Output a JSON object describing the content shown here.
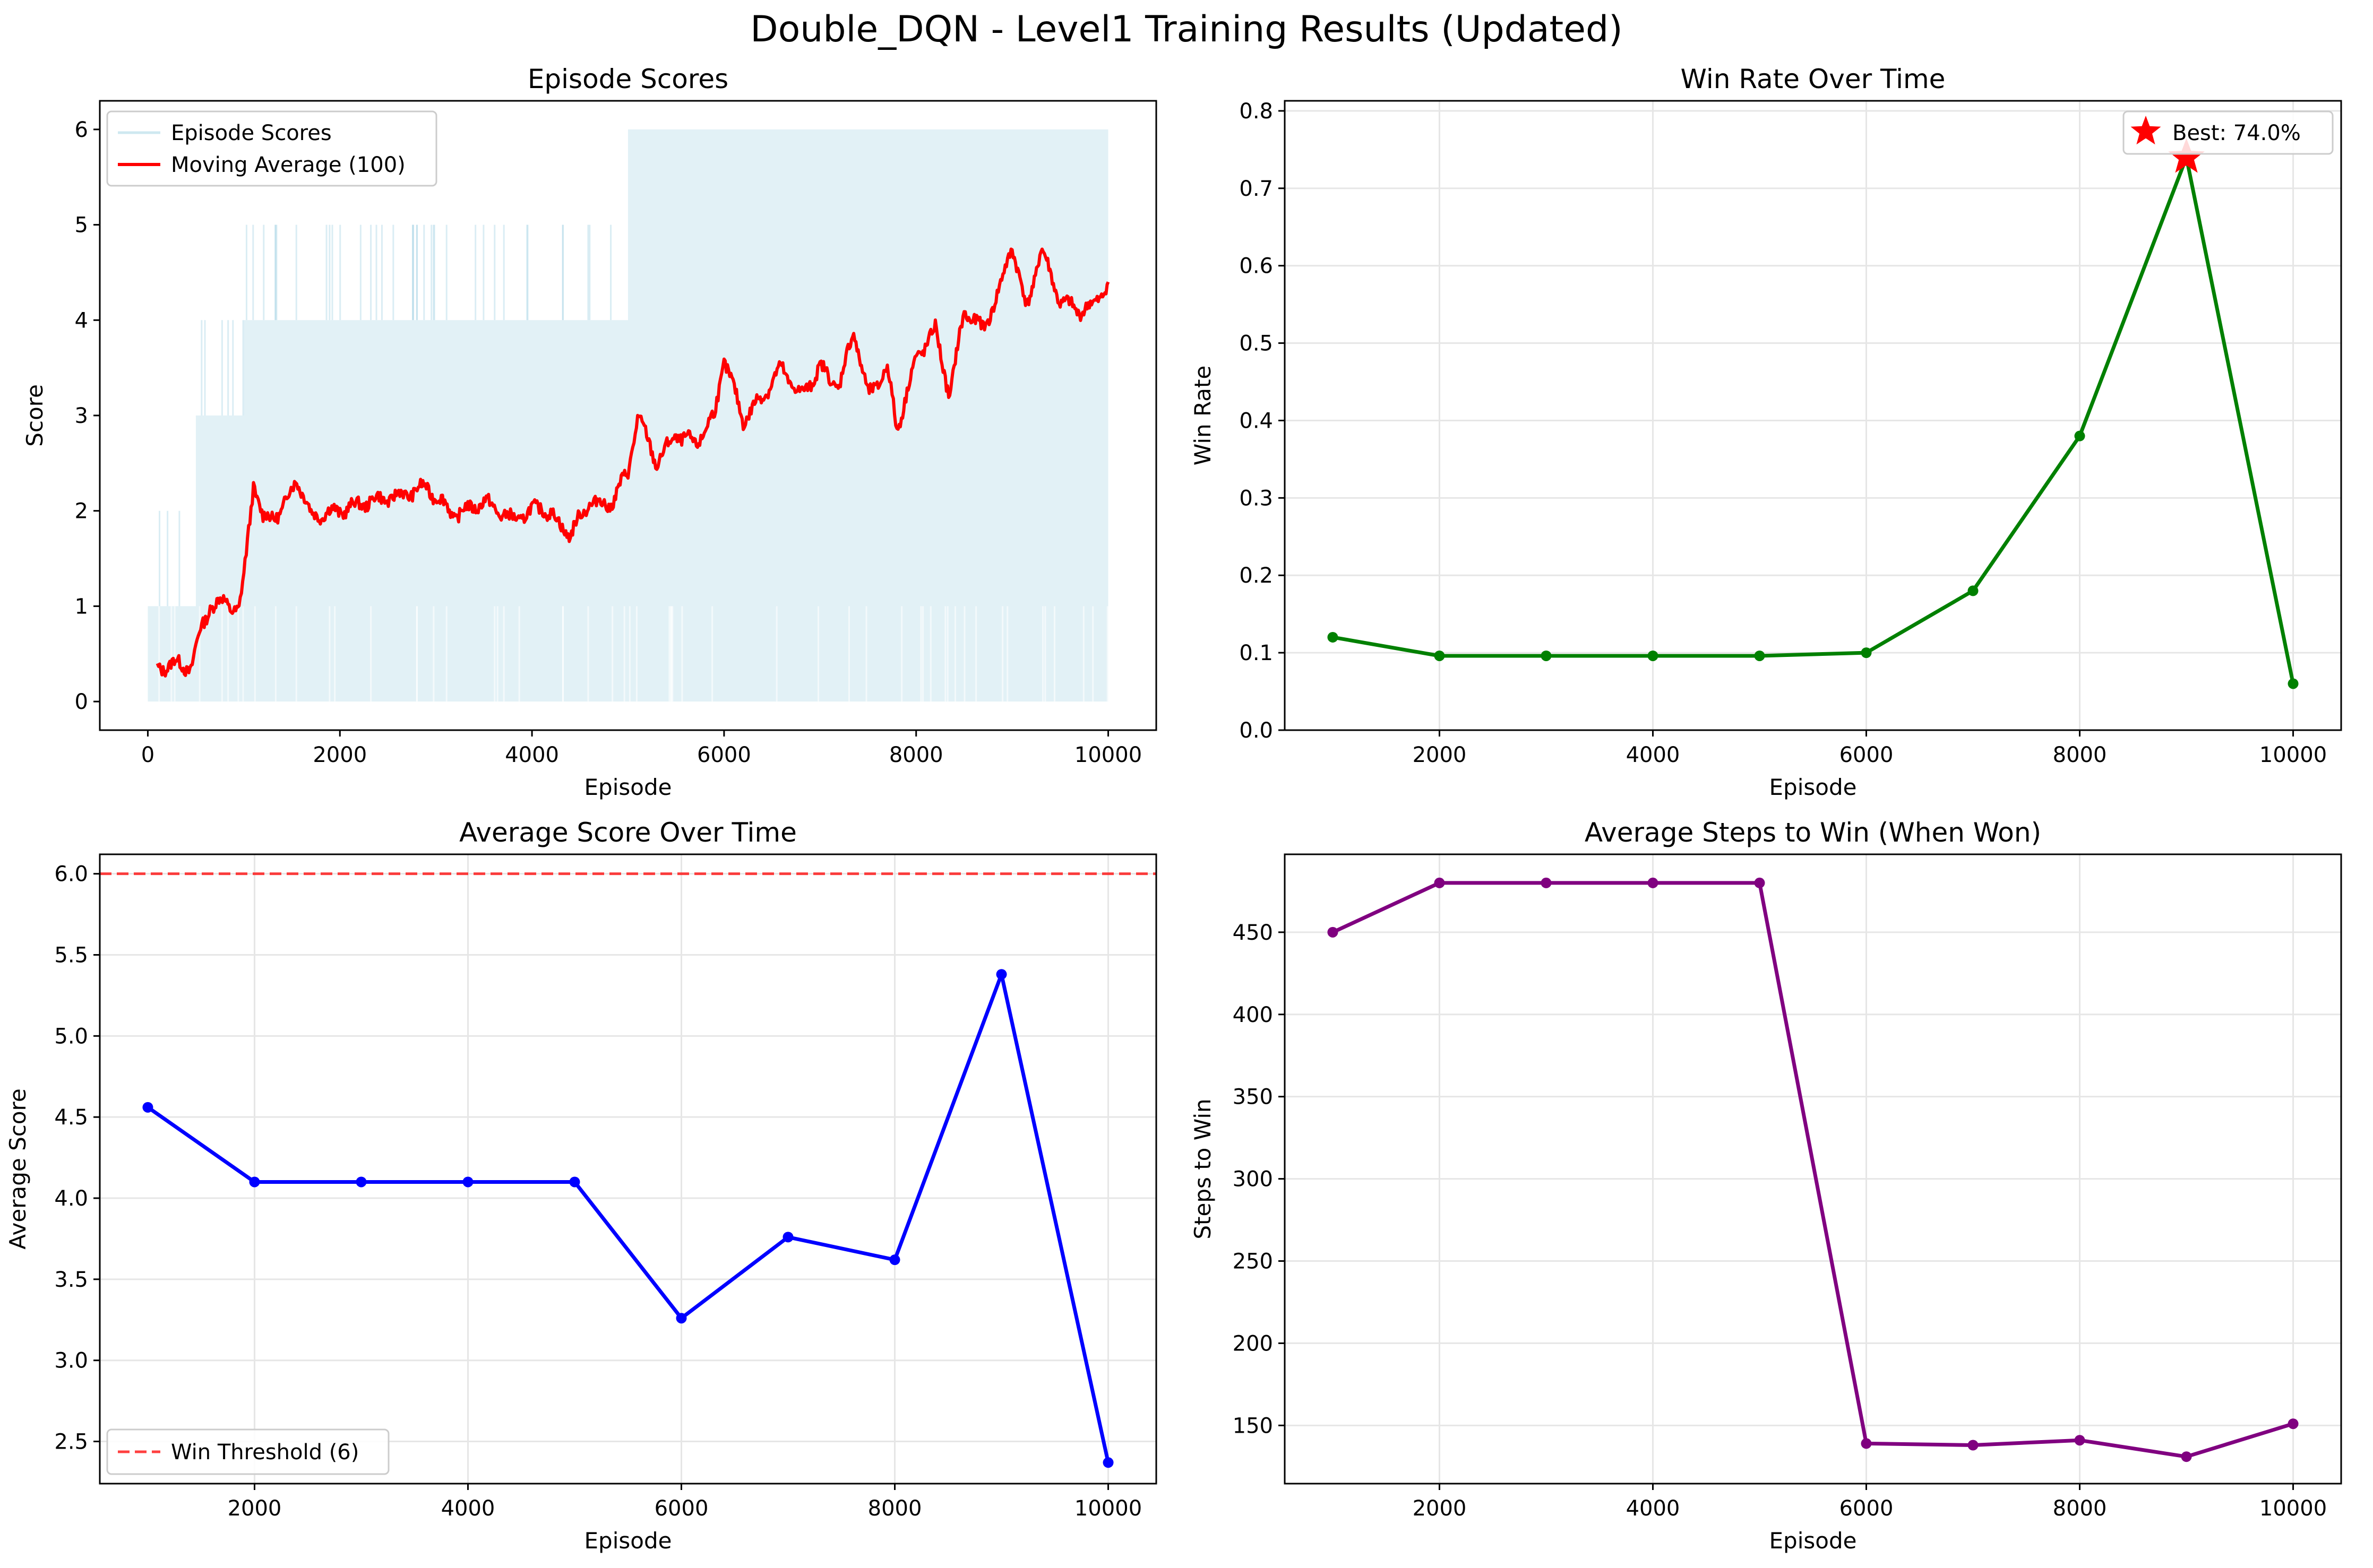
{
  "figure": {
    "title": "Double_DQN - Level1 Training Results (Updated)"
  },
  "chart_data": [
    {
      "id": "episode-scores",
      "type": "line",
      "title": "Episode Scores",
      "xlabel": "Episode",
      "ylabel": "Score",
      "xlim": [
        -500,
        10500
      ],
      "ylim": [
        -0.3,
        6.3
      ],
      "xticks": [
        0,
        2000,
        4000,
        6000,
        8000,
        10000
      ],
      "yticks": [
        0,
        1,
        2,
        3,
        4,
        5,
        6
      ],
      "grid": false,
      "legend": "top-left",
      "series": [
        {
          "name": "Episode Scores",
          "kind": "band",
          "color": "#add8e6",
          "segments": [
            {
              "x": [
                0,
                500
              ],
              "low": 0,
              "high": 1,
              "spikes_to": 2
            },
            {
              "x": [
                500,
                1000
              ],
              "low": 0,
              "high": 3,
              "spikes_to": 4
            },
            {
              "x": [
                1000,
                5000
              ],
              "low": 0,
              "high": 4,
              "spikes_to": 5
            },
            {
              "x": [
                5000,
                10000
              ],
              "low": 0,
              "high": 6,
              "spikes_to": 6
            }
          ]
        },
        {
          "name": "Moving Average (100)",
          "kind": "line",
          "color": "#ff0000",
          "x": [
            100,
            300,
            450,
            550,
            650,
            800,
            950,
            1000,
            1100,
            1200,
            1400,
            1550,
            1700,
            2000,
            2300,
            2600,
            2900,
            3200,
            3500,
            3800,
            4100,
            4400,
            4600,
            4800,
            5000,
            5100,
            5300,
            5500,
            5700,
            5900,
            6000,
            6200,
            6400,
            6600,
            6800,
            7000,
            7200,
            7350,
            7500,
            7700,
            7800,
            8000,
            8200,
            8350,
            8500,
            8700,
            8880,
            9000,
            9150,
            9300,
            9500,
            9700,
            9850,
            10000
          ],
          "y": [
            0.35,
            0.4,
            0.35,
            0.75,
            1.0,
            1.05,
            0.95,
            1.3,
            2.3,
            1.9,
            2.0,
            2.35,
            1.95,
            2.0,
            2.1,
            2.15,
            2.25,
            1.95,
            2.1,
            1.9,
            2.05,
            1.75,
            2.1,
            2.05,
            2.4,
            3.0,
            2.5,
            2.8,
            2.7,
            3.0,
            3.6,
            2.95,
            3.2,
            3.5,
            3.2,
            3.5,
            3.3,
            3.9,
            3.2,
            3.5,
            2.85,
            3.6,
            3.9,
            3.2,
            4.1,
            3.9,
            4.35,
            4.8,
            4.1,
            4.75,
            4.2,
            4.1,
            4.15,
            4.4
          ]
        }
      ]
    },
    {
      "id": "win-rate",
      "type": "line",
      "title": "Win Rate Over Time",
      "xlabel": "Episode",
      "ylabel": "Win Rate",
      "xlim": [
        550,
        10450
      ],
      "ylim": [
        0.0,
        0.813
      ],
      "xticks": [
        2000,
        4000,
        6000,
        8000,
        10000
      ],
      "yticks": [
        "0.0",
        "0.1",
        "0.2",
        "0.3",
        "0.4",
        "0.5",
        "0.6",
        "0.7",
        "0.8"
      ],
      "grid": true,
      "legend": "top-right",
      "series": [
        {
          "color": "#008000",
          "x": [
            1000,
            2000,
            3000,
            4000,
            5000,
            6000,
            7000,
            8000,
            9000,
            10000
          ],
          "y": [
            0.12,
            0.096,
            0.096,
            0.096,
            0.096,
            0.1,
            0.18,
            0.38,
            0.74,
            0.06
          ]
        }
      ],
      "annotation": {
        "label": "Best: 74.0%",
        "x": 9000,
        "y": 0.74,
        "marker": "star",
        "color": "#ff0000"
      }
    },
    {
      "id": "average-score",
      "type": "line",
      "title": "Average Score Over Time",
      "xlabel": "Episode",
      "ylabel": "Average Score",
      "xlim": [
        550,
        10450
      ],
      "ylim": [
        2.24,
        6.12
      ],
      "xticks": [
        2000,
        4000,
        6000,
        8000,
        10000
      ],
      "yticks": [
        "2.5",
        "3.0",
        "3.5",
        "4.0",
        "4.5",
        "5.0",
        "5.5",
        "6.0"
      ],
      "grid": true,
      "legend": "bottom-left",
      "series": [
        {
          "color": "#0000ff",
          "x": [
            1000,
            2000,
            3000,
            4000,
            5000,
            6000,
            7000,
            8000,
            9000,
            10000
          ],
          "y": [
            4.56,
            4.1,
            4.1,
            4.1,
            4.1,
            3.26,
            3.76,
            3.62,
            5.38,
            2.37
          ]
        }
      ],
      "threshold": {
        "name": "Win Threshold (6)",
        "y": 6,
        "color": "#ff0000",
        "style": "dashed"
      }
    },
    {
      "id": "average-steps",
      "type": "line",
      "title": "Average Steps to Win (When Won)",
      "xlabel": "Episode",
      "ylabel": "Steps to Win",
      "xlim": [
        550,
        10450
      ],
      "ylim": [
        114.6,
        497.4
      ],
      "xticks": [
        2000,
        4000,
        6000,
        8000,
        10000
      ],
      "yticks": [
        150,
        200,
        250,
        300,
        350,
        400,
        450
      ],
      "grid": true,
      "legend": "none",
      "series": [
        {
          "color": "#800080",
          "x": [
            1000,
            2000,
            3000,
            4000,
            5000,
            6000,
            7000,
            8000,
            9000,
            10000
          ],
          "y": [
            450,
            480,
            480,
            480,
            480,
            139,
            138,
            141,
            131,
            151
          ]
        }
      ]
    }
  ]
}
